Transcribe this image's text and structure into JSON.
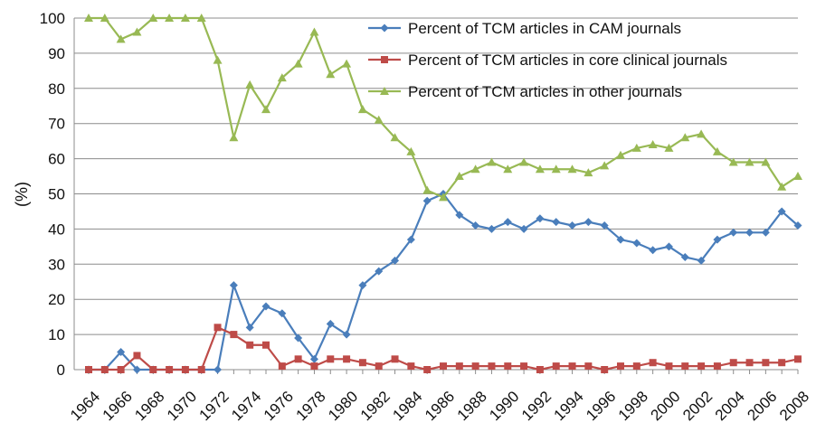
{
  "chart_data": {
    "type": "line",
    "title": "",
    "xlabel": "",
    "ylabel": "(%)",
    "ylim": [
      0,
      100
    ],
    "yticks": [
      0,
      10,
      20,
      30,
      40,
      50,
      60,
      70,
      80,
      90,
      100
    ],
    "grid": "horizontal",
    "legend_position": "top-right",
    "x": [
      1964,
      1965,
      1966,
      1967,
      1968,
      1969,
      1970,
      1971,
      1972,
      1973,
      1974,
      1975,
      1976,
      1977,
      1978,
      1979,
      1980,
      1981,
      1982,
      1983,
      1984,
      1985,
      1986,
      1987,
      1988,
      1989,
      1990,
      1991,
      1992,
      1993,
      1994,
      1995,
      1996,
      1997,
      1998,
      1999,
      2000,
      2001,
      2002,
      2003,
      2004,
      2005,
      2006,
      2007,
      2008
    ],
    "xtick_labels": [
      "1964",
      "1966",
      "1968",
      "1970",
      "1972",
      "1974",
      "1976",
      "1978",
      "1980",
      "1982",
      "1984",
      "1986",
      "1988",
      "1990",
      "1992",
      "1994",
      "1996",
      "1998",
      "2000",
      "2002",
      "2004",
      "2006",
      "2008"
    ],
    "series": [
      {
        "name": "Percent of TCM articles in CAM journals",
        "color": "#4a7ebb",
        "marker": "diamond",
        "values": [
          0,
          0,
          5,
          0,
          0,
          0,
          0,
          0,
          0,
          24,
          12,
          18,
          16,
          9,
          3,
          13,
          10,
          24,
          28,
          31,
          37,
          48,
          50,
          44,
          41,
          40,
          42,
          40,
          43,
          42,
          41,
          42,
          41,
          37,
          36,
          34,
          35,
          32,
          31,
          37,
          39,
          39,
          39,
          45,
          41
        ]
      },
      {
        "name": "Percent of TCM articles in core clinical journals",
        "color": "#be4b48",
        "marker": "square",
        "values": [
          0,
          0,
          0,
          4,
          0,
          0,
          0,
          0,
          12,
          10,
          7,
          7,
          1,
          3,
          1,
          3,
          3,
          2,
          1,
          3,
          1,
          0,
          1,
          1,
          1,
          1,
          1,
          1,
          0,
          1,
          1,
          1,
          0,
          1,
          1,
          2,
          1,
          1,
          1,
          1,
          2,
          2,
          2,
          2,
          3
        ]
      },
      {
        "name": "Percent of TCM articles in other journals",
        "color": "#98b954",
        "marker": "triangle",
        "values": [
          100,
          100,
          94,
          96,
          100,
          100,
          100,
          100,
          88,
          66,
          81,
          74,
          83,
          87,
          96,
          84,
          87,
          74,
          71,
          66,
          62,
          51,
          49,
          55,
          57,
          59,
          57,
          59,
          57,
          57,
          57,
          56,
          58,
          61,
          63,
          64,
          63,
          66,
          67,
          62,
          59,
          59,
          59,
          52,
          55
        ]
      }
    ]
  }
}
